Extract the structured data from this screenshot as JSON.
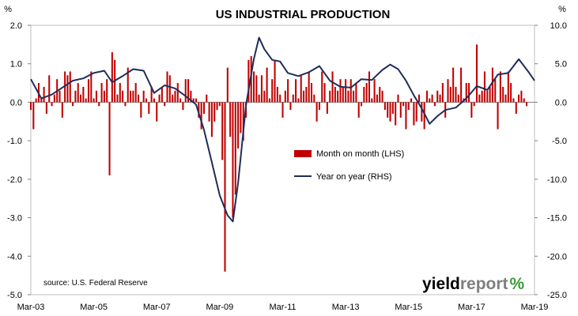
{
  "chart_data": {
    "type": "bar+line",
    "title": "US INDUSTRIAL PRODUCTION",
    "left_unit": "%",
    "right_unit": "%",
    "source": "source: U.S. Federal Reserve",
    "logo": {
      "part1": "yield",
      "part2": "report",
      "part3": "%"
    },
    "x_ticks": [
      "Mar-03",
      "Mar-05",
      "Mar-07",
      "Mar-09",
      "Mar-11",
      "Mar-13",
      "Mar-15",
      "Mar-17",
      "Mar-19"
    ],
    "x_start": "2003-03",
    "x_end": "2019-03",
    "y_left": {
      "range": [
        -5.0,
        2.0
      ],
      "ticks": [
        "2.0",
        "1.0",
        "0.0",
        "-1.0",
        "-2.0",
        "-3.0",
        "-4.0",
        "-5.0"
      ]
    },
    "y_right": {
      "range": [
        -25.0,
        10.0
      ],
      "ticks": [
        "10.0",
        "5.0",
        "0.0",
        "-5.0",
        "-10.0",
        "-15.0",
        "-20.0",
        "-25.0"
      ]
    },
    "legend": [
      {
        "label": "Month on month (LHS)",
        "color": "#c00000",
        "kind": "bar"
      },
      {
        "label": "Year on year (RHS)",
        "color": "#1f2d5a",
        "kind": "line"
      }
    ],
    "series_mom": {
      "name": "Month on month (LHS)",
      "color": "#c00000",
      "start": "2003-03",
      "values": [
        -0.2,
        -0.7,
        0.1,
        0.5,
        0.1,
        0.4,
        -0.3,
        0.7,
        -0.1,
        0.2,
        0.6,
        0.3,
        -0.4,
        0.8,
        0.7,
        0.8,
        -0.1,
        0.3,
        0.5,
        0.2,
        0.4,
        0.1,
        0.6,
        0.8,
        0.1,
        0.3,
        -0.1,
        0.5,
        0.3,
        0.6,
        -1.9,
        1.3,
        1.1,
        0.2,
        0.5,
        0.3,
        -0.1,
        0.9,
        0.3,
        0.3,
        0.5,
        0.2,
        -0.4,
        0.3,
        0.1,
        -0.3,
        0.4,
        0.1,
        -0.5,
        0.2,
        0.4,
        -0.1,
        0.8,
        0.7,
        0.2,
        0.3,
        0.5,
        0.1,
        -0.2,
        0.6,
        0.6,
        0.3,
        0.1,
        0.1,
        -0.4,
        -0.7,
        -0.3,
        0.2,
        -0.5,
        -0.9,
        -0.5,
        -0.2,
        -0.1,
        -1.5,
        -4.4,
        0.9,
        -0.9,
        -3.0,
        -2.4,
        -1.2,
        -0.8,
        -1.0,
        -0.4,
        1.1,
        1.2,
        0.8,
        0.7,
        0.2,
        0.7,
        0.3,
        0.9,
        0.1,
        0.6,
        1.1,
        0.4,
        0.2,
        -0.4,
        0.3,
        0.6,
        -0.2,
        0.2,
        0.6,
        0.1,
        0.7,
        0.3,
        0.4,
        0.8,
        0.5,
        0.2,
        -0.5,
        -0.2,
        0.8,
        0.5,
        -0.3,
        0.3,
        0.8,
        0.4,
        0.3,
        0.6,
        0.4,
        0.6,
        0.3,
        0.6,
        0.3,
        0.5,
        -0.4,
        -0.1,
        0.4,
        0.5,
        0.8,
        0.1,
        0.6,
        0.2,
        0.4,
        0.3,
        -0.2,
        -0.4,
        -0.5,
        -0.3,
        -0.6,
        0.2,
        -0.4,
        -0.1,
        -0.7,
        -0.2,
        0.1,
        -0.6,
        -0.5,
        0.2,
        -0.5,
        -0.7,
        0.3,
        0.1,
        0.2,
        -0.1,
        0.3,
        0.2,
        0.5,
        -0.4,
        0.6,
        0.4,
        0.9,
        0.4,
        0.2,
        0.9,
        0.1,
        0.5,
        0.5,
        -0.4,
        -0.1,
        1.5,
        0.2,
        0.3,
        0.8,
        0.3,
        0.4,
        0.9,
        0.6,
        -0.7,
        0.8,
        0.4,
        0.2,
        0.8,
        0.5,
        0.1,
        -0.3,
        0.2,
        0.3,
        0.1,
        -0.1
      ]
    },
    "series_yoy": {
      "name": "Year on year (RHS)",
      "color": "#1f2d5a",
      "points": [
        [
          "2003-03",
          3.0
        ],
        [
          "2003-07",
          0.5
        ],
        [
          "2003-11",
          1.0
        ],
        [
          "2004-03",
          1.9
        ],
        [
          "2004-07",
          2.8
        ],
        [
          "2004-11",
          3.1
        ],
        [
          "2005-03",
          3.8
        ],
        [
          "2005-07",
          4.1
        ],
        [
          "2005-10",
          2.6
        ],
        [
          "2006-02",
          3.4
        ],
        [
          "2006-06",
          4.3
        ],
        [
          "2006-10",
          4.1
        ],
        [
          "2007-02",
          1.2
        ],
        [
          "2007-06",
          2.2
        ],
        [
          "2007-10",
          1.8
        ],
        [
          "2008-02",
          0.8
        ],
        [
          "2008-06",
          -0.3
        ],
        [
          "2008-09",
          -3.6
        ],
        [
          "2008-12",
          -7.8
        ],
        [
          "2009-03",
          -12.1
        ],
        [
          "2009-06",
          -14.7
        ],
        [
          "2009-08",
          -15.5
        ],
        [
          "2009-10",
          -10.5
        ],
        [
          "2010-01",
          -0.4
        ],
        [
          "2010-04",
          5.6
        ],
        [
          "2010-06",
          8.4
        ],
        [
          "2010-08",
          6.9
        ],
        [
          "2010-11",
          5.5
        ],
        [
          "2011-02",
          5.3
        ],
        [
          "2011-05",
          3.8
        ],
        [
          "2011-09",
          3.4
        ],
        [
          "2012-01",
          3.9
        ],
        [
          "2012-05",
          4.7
        ],
        [
          "2012-09",
          2.8
        ],
        [
          "2013-01",
          2.0
        ],
        [
          "2013-05",
          1.9
        ],
        [
          "2013-09",
          3.0
        ],
        [
          "2014-01",
          2.9
        ],
        [
          "2014-05",
          4.2
        ],
        [
          "2014-08",
          4.9
        ],
        [
          "2014-11",
          4.3
        ],
        [
          "2015-02",
          2.8
        ],
        [
          "2015-05",
          0.9
        ],
        [
          "2015-08",
          -0.8
        ],
        [
          "2015-11",
          -2.8
        ],
        [
          "2016-02",
          -1.8
        ],
        [
          "2016-05",
          -1.0
        ],
        [
          "2016-09",
          -0.7
        ],
        [
          "2017-01",
          0.5
        ],
        [
          "2017-05",
          2.1
        ],
        [
          "2017-09",
          1.6
        ],
        [
          "2018-01",
          3.6
        ],
        [
          "2018-05",
          3.8
        ],
        [
          "2018-09",
          5.6
        ],
        [
          "2019-01",
          3.8
        ],
        [
          "2019-03",
          2.8
        ]
      ]
    }
  }
}
